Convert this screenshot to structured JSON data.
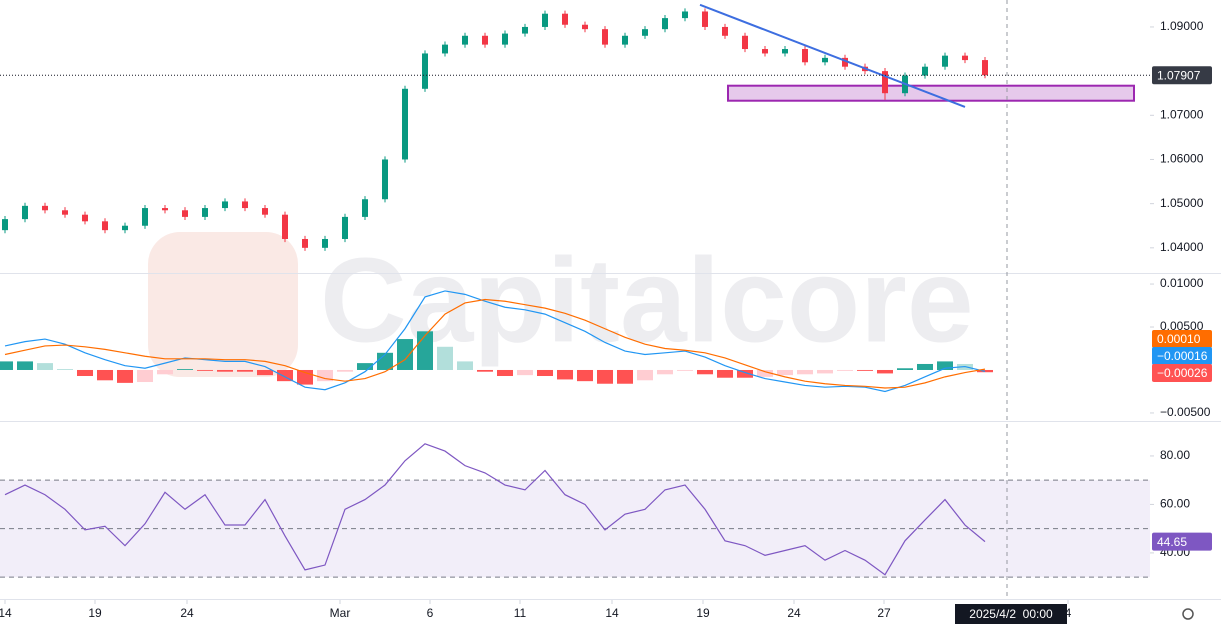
{
  "watermark": "Capitalcore",
  "chart_data": [
    {
      "type": "candlestick",
      "up_color": "#089981",
      "down_color": "#f23645",
      "ylim": [
        1.0343,
        1.0961
      ],
      "yticks": [
        {
          "value": 1.04,
          "label": "1.04000"
        },
        {
          "value": 1.05,
          "label": "1.05000"
        },
        {
          "value": 1.06,
          "label": "1.06000"
        },
        {
          "value": 1.07,
          "label": "1.07000"
        },
        {
          "value": 1.09,
          "label": "1.09000"
        }
      ],
      "open": [
        1.044,
        1.0465,
        1.0495,
        1.0485,
        1.0475,
        1.046,
        1.044,
        1.045,
        1.049,
        1.0485,
        1.047,
        1.049,
        1.0505,
        1.049,
        1.0475,
        1.042,
        1.04,
        1.042,
        1.047,
        1.051,
        1.06,
        1.076,
        1.084,
        1.086,
        1.088,
        1.086,
        1.0885,
        1.09,
        1.093,
        1.0905,
        1.0895,
        1.086,
        1.088,
        1.0895,
        1.092,
        1.0935,
        1.09,
        1.088,
        1.085,
        1.084,
        1.085,
        1.082,
        1.083,
        1.081,
        1.08,
        1.075,
        1.079,
        1.081,
        1.0835,
        1.0825
      ],
      "high": [
        1.0472,
        1.0502,
        1.0502,
        1.0492,
        1.0482,
        1.0467,
        1.0457,
        1.0497,
        1.0497,
        1.0492,
        1.0497,
        1.0512,
        1.0512,
        1.0497,
        1.0482,
        1.0427,
        1.0427,
        1.0477,
        1.0517,
        1.0607,
        1.0767,
        1.0847,
        1.0867,
        1.0887,
        1.0887,
        1.0892,
        1.0907,
        1.0937,
        1.0937,
        1.0912,
        1.0902,
        1.0887,
        1.0902,
        1.0927,
        1.0942,
        1.0942,
        1.0907,
        1.0887,
        1.0857,
        1.0857,
        1.0857,
        1.0837,
        1.0837,
        1.0817,
        1.0807,
        1.0797,
        1.0817,
        1.0842,
        1.0842,
        1.0832
      ],
      "low": [
        1.0433,
        1.0458,
        1.0478,
        1.0468,
        1.0453,
        1.0433,
        1.0433,
        1.0443,
        1.0478,
        1.0463,
        1.0463,
        1.0483,
        1.0483,
        1.0468,
        1.0413,
        1.0393,
        1.0393,
        1.0413,
        1.0463,
        1.0503,
        1.0593,
        1.0753,
        1.0833,
        1.0853,
        1.0853,
        1.0853,
        1.0878,
        1.0893,
        1.0898,
        1.0888,
        1.0853,
        1.0853,
        1.0873,
        1.0888,
        1.0913,
        1.0893,
        1.0873,
        1.0843,
        1.0833,
        1.0833,
        1.0813,
        1.0813,
        1.0803,
        1.0793,
        1.0735,
        1.0743,
        1.0783,
        1.0803,
        1.0818,
        1.0784
      ],
      "close": [
        1.0465,
        1.0495,
        1.0485,
        1.0475,
        1.046,
        1.044,
        1.045,
        1.049,
        1.0485,
        1.047,
        1.049,
        1.0505,
        1.049,
        1.0475,
        1.042,
        1.04,
        1.042,
        1.047,
        1.051,
        1.06,
        1.076,
        1.084,
        1.086,
        1.088,
        1.086,
        1.0885,
        1.09,
        1.093,
        1.0905,
        1.0895,
        1.086,
        1.088,
        1.0895,
        1.092,
        1.0935,
        1.09,
        1.088,
        1.085,
        1.084,
        1.085,
        1.082,
        1.083,
        1.081,
        1.08,
        1.075,
        1.079,
        1.081,
        1.0835,
        1.0825,
        1.07907
      ],
      "last_price": {
        "value": 1.07907,
        "label": "1.07907"
      },
      "trendline": {
        "color": "#3d6ee0",
        "x": [
          34.75,
          48.0
        ],
        "y": [
          1.095,
          1.0719
        ]
      },
      "zone": {
        "color": "#9c27b0",
        "x": [
          36.15,
          56.45
        ],
        "y": [
          1.0733,
          1.0767
        ]
      }
    },
    {
      "type": "macd",
      "ylim": [
        -0.00582,
        0.01117
      ],
      "yticks": [
        {
          "value": -0.005,
          "label": "−0.00500"
        },
        {
          "value": 0.005,
          "label": "0.00500"
        },
        {
          "value": 0.01,
          "label": "0.01000"
        }
      ],
      "macd": {
        "color": "#2196f3",
        "last_label": "−0.00016",
        "values": [
          0.0028,
          0.0033,
          0.0036,
          0.003,
          0.002,
          0.0012,
          0.0005,
          0.0002,
          0.0008,
          0.0014,
          0.0012,
          0.001,
          0.001,
          0.0004,
          -0.0008,
          -0.002,
          -0.0023,
          -0.0015,
          -0.0002,
          0.0018,
          0.0048,
          0.0085,
          0.0092,
          0.0088,
          0.008,
          0.0073,
          0.007,
          0.0065,
          0.0055,
          0.0045,
          0.0032,
          0.0022,
          0.0018,
          0.002,
          0.0022,
          0.0015,
          0.0005,
          -0.0003,
          -0.001,
          -0.0014,
          -0.0018,
          -0.002,
          -0.0019,
          -0.002,
          -0.0025,
          -0.0018,
          -0.0008,
          0.0002,
          0.0004,
          -0.00016
        ]
      },
      "signal": {
        "color": "#ff6d00",
        "last_label": "0.00010",
        "values": [
          0.0018,
          0.0023,
          0.0028,
          0.0029,
          0.0027,
          0.0024,
          0.002,
          0.0016,
          0.0013,
          0.0013,
          0.0013,
          0.0012,
          0.0012,
          0.001,
          0.0005,
          -0.0003,
          -0.001,
          -0.0013,
          -0.001,
          -0.0002,
          0.0012,
          0.004,
          0.0065,
          0.0078,
          0.0082,
          0.008,
          0.0076,
          0.0072,
          0.0066,
          0.0058,
          0.0048,
          0.0038,
          0.003,
          0.0025,
          0.0023,
          0.002,
          0.0014,
          0.0006,
          -0.0002,
          -0.0008,
          -0.0013,
          -0.0016,
          -0.0018,
          -0.0019,
          -0.0021,
          -0.002,
          -0.0015,
          -0.0008,
          -0.0003,
          0.0001
        ]
      },
      "histogram": {
        "colors": [
          "#26a69a",
          "#b2dfdb",
          "#ff5252",
          "#ffcdd2"
        ],
        "last_label": "−0.00026",
        "values": [
          0.001,
          0.001,
          0.0008,
          0.0001,
          -0.0007,
          -0.0012,
          -0.0015,
          -0.0014,
          -0.0005,
          0.0001,
          -0.0001,
          -0.0002,
          -0.0002,
          -0.0006,
          -0.0013,
          -0.0017,
          -0.0013,
          -0.0002,
          0.0008,
          0.002,
          0.0036,
          0.0045,
          0.0027,
          0.001,
          -0.0002,
          -0.0007,
          -0.0006,
          -0.0007,
          -0.0011,
          -0.0013,
          -0.0016,
          -0.0016,
          -0.0012,
          -0.0005,
          -0.0001,
          -0.0005,
          -0.0009,
          -0.0009,
          -0.0008,
          -0.0006,
          -0.0005,
          -0.0004,
          -0.0001,
          -0.0001,
          -0.0004,
          0.0002,
          0.0007,
          0.001,
          0.0007,
          -0.00026
        ]
      }
    },
    {
      "type": "line",
      "color": "#7e57c2",
      "band": [
        30,
        70
      ],
      "midline": 50,
      "ylim": [
        21.4,
        94
      ],
      "yticks": [
        {
          "value": 40,
          "label": "40.00"
        },
        {
          "value": 60,
          "label": "60.00"
        },
        {
          "value": 80,
          "label": "80.00"
        }
      ],
      "values": [
        64,
        68,
        64,
        58,
        49.5,
        51,
        43,
        52,
        65,
        58,
        64,
        51.5,
        51.5,
        62,
        47,
        33,
        35,
        58,
        62,
        68,
        78,
        85,
        82,
        76,
        73,
        68,
        66,
        74,
        64,
        60,
        49.5,
        56,
        58,
        66,
        68,
        58,
        45,
        43,
        39,
        41,
        43,
        37,
        41,
        37,
        31,
        45,
        53.6,
        62,
        51.5,
        44.65
      ],
      "xlim": [
        -0.25,
        57.25
      ],
      "xticks": [
        {
          "value": 0,
          "label": "14"
        },
        {
          "value": 4.5,
          "label": "19"
        },
        {
          "value": 9.1,
          "label": "24"
        },
        {
          "value": 16.75,
          "label": "Mar"
        },
        {
          "value": 21.25,
          "label": "6"
        },
        {
          "value": 25.75,
          "label": "11"
        },
        {
          "value": 30.35,
          "label": "14"
        },
        {
          "value": 34.9,
          "label": "19"
        },
        {
          "value": 39.45,
          "label": "24"
        },
        {
          "value": 43.95,
          "label": "27"
        },
        {
          "value": 53.15,
          "label": "4"
        }
      ],
      "crosshair": {
        "value": 50.1,
        "label": "2025/4/2  00:00"
      }
    }
  ]
}
